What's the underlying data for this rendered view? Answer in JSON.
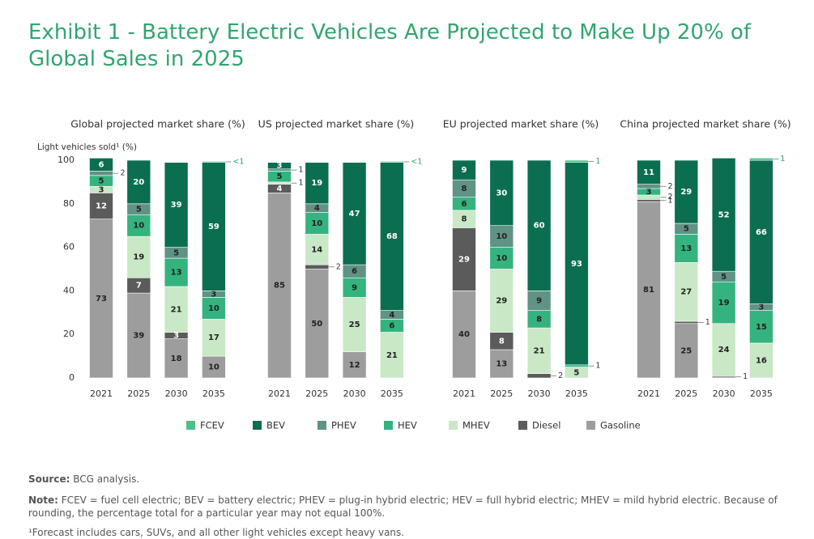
{
  "title": "Exhibit 1 - Battery Electric Vehicles Are Projected to Make Up 20% of Global Sales in 2025",
  "source": {
    "label": "Source:",
    "text": "BCG analysis."
  },
  "note": {
    "label": "Note:",
    "text": "FCEV = fuel cell electric; BEV = battery electric; PHEV = plug-in hybrid electric; HEV = full hybrid electric; MHEV = mild hybrid electric. Because of rounding, the percentage total for a particular year may not equal 100%."
  },
  "footnote": "¹Forecast includes cars, SUVs, and all other light vehicles except heavy vans.",
  "chart_data": [
    {
      "type": "bar",
      "stacked": true,
      "title": "Global projected market share (%)",
      "ylabel": "Light vehicles sold¹ (%)",
      "categories": [
        "2021",
        "2025",
        "2030",
        "2035"
      ],
      "ylim": [
        0,
        100
      ],
      "yticks": [
        0,
        20,
        40,
        60,
        80,
        100
      ],
      "series": [
        {
          "name": "FCEV",
          "color": "#4cc08a",
          "values": [
            0,
            0,
            0,
            0.5
          ],
          "value_labels": [
            null,
            null,
            null,
            "<1"
          ]
        },
        {
          "name": "BEV",
          "color": "#0b6e50",
          "values": [
            6,
            20,
            39,
            59
          ]
        },
        {
          "name": "PHEV",
          "color": "#5f9385",
          "values": [
            2,
            5,
            5,
            3
          ]
        },
        {
          "name": "HEV",
          "color": "#35b37f",
          "values": [
            5,
            10,
            13,
            10
          ]
        },
        {
          "name": "MHEV",
          "color": "#c9e8c6",
          "values": [
            3,
            19,
            21,
            17
          ]
        },
        {
          "name": "Diesel",
          "color": "#5b5b5b",
          "values": [
            12,
            7,
            3,
            0
          ]
        },
        {
          "name": "Gasoline",
          "color": "#9d9d9d",
          "values": [
            73,
            39,
            18,
            10
          ]
        }
      ]
    },
    {
      "type": "bar",
      "stacked": true,
      "title": "US projected market share (%)",
      "categories": [
        "2021",
        "2025",
        "2030",
        "2035"
      ],
      "ylim": [
        0,
        100
      ],
      "series": [
        {
          "name": "FCEV",
          "color": "#4cc08a",
          "values": [
            0,
            0,
            0,
            0.5
          ],
          "value_labels": [
            null,
            null,
            null,
            "<1"
          ]
        },
        {
          "name": "BEV",
          "color": "#0b6e50",
          "values": [
            3,
            19,
            47,
            68
          ]
        },
        {
          "name": "PHEV",
          "color": "#5f9385",
          "values": [
            1,
            4,
            6,
            4
          ]
        },
        {
          "name": "HEV",
          "color": "#35b37f",
          "values": [
            5,
            10,
            9,
            6
          ]
        },
        {
          "name": "MHEV",
          "color": "#c9e8c6",
          "values": [
            1,
            14,
            25,
            21
          ]
        },
        {
          "name": "Diesel",
          "color": "#5b5b5b",
          "values": [
            4,
            2,
            0,
            0
          ]
        },
        {
          "name": "Gasoline",
          "color": "#9d9d9d",
          "values": [
            85,
            50,
            12,
            0
          ]
        }
      ]
    },
    {
      "type": "bar",
      "stacked": true,
      "title": "EU projected market share (%)",
      "categories": [
        "2021",
        "2025",
        "2030",
        "2035"
      ],
      "ylim": [
        0,
        100
      ],
      "series": [
        {
          "name": "FCEV",
          "color": "#4cc08a",
          "values": [
            0,
            0,
            0,
            1
          ]
        },
        {
          "name": "BEV",
          "color": "#0b6e50",
          "values": [
            9,
            30,
            60,
            93
          ]
        },
        {
          "name": "PHEV",
          "color": "#5f9385",
          "values": [
            8,
            10,
            9,
            0
          ]
        },
        {
          "name": "HEV",
          "color": "#35b37f",
          "values": [
            6,
            10,
            8,
            1
          ]
        },
        {
          "name": "MHEV",
          "color": "#c9e8c6",
          "values": [
            8,
            29,
            21,
            5
          ]
        },
        {
          "name": "Diesel",
          "color": "#5b5b5b",
          "values": [
            29,
            8,
            2,
            0
          ]
        },
        {
          "name": "Gasoline",
          "color": "#9d9d9d",
          "values": [
            40,
            13,
            0,
            0
          ]
        }
      ]
    },
    {
      "type": "bar",
      "stacked": true,
      "title": "China projected market share (%)",
      "categories": [
        "2021",
        "2025",
        "2030",
        "2035"
      ],
      "ylim": [
        0,
        100
      ],
      "series": [
        {
          "name": "FCEV",
          "color": "#4cc08a",
          "values": [
            0,
            0,
            0,
            1
          ]
        },
        {
          "name": "BEV",
          "color": "#0b6e50",
          "values": [
            11,
            29,
            52,
            66
          ]
        },
        {
          "name": "PHEV",
          "color": "#5f9385",
          "values": [
            2,
            5,
            5,
            3
          ]
        },
        {
          "name": "HEV",
          "color": "#35b37f",
          "values": [
            3,
            13,
            19,
            15
          ]
        },
        {
          "name": "MHEV",
          "color": "#c9e8c6",
          "values": [
            2,
            27,
            24,
            16
          ]
        },
        {
          "name": "Diesel",
          "color": "#5b5b5b",
          "values": [
            1,
            1,
            0,
            0
          ]
        },
        {
          "name": "Gasoline",
          "color": "#9d9d9d",
          "values": [
            81,
            25,
            1,
            0
          ]
        }
      ]
    }
  ]
}
